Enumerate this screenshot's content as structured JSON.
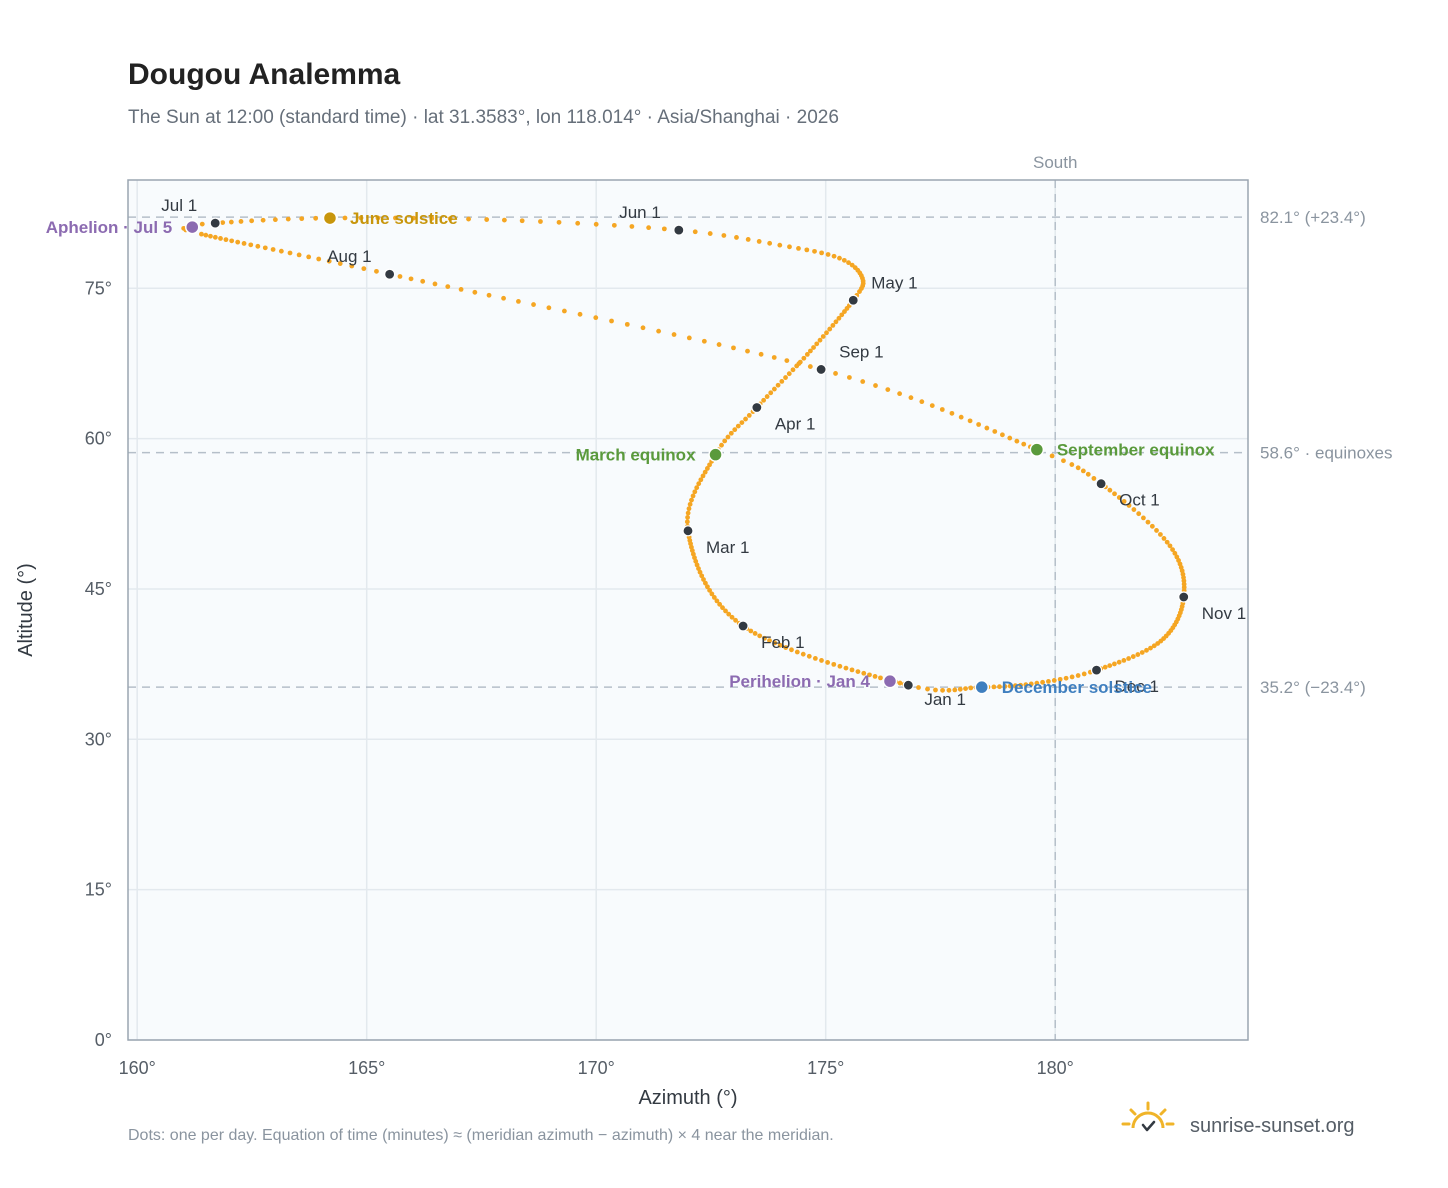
{
  "title": "Dougou Analemma",
  "subtitle": "The Sun at 12:00 (standard time) · lat 31.3583°, lon 118.014° · Asia/Shanghai · 2026",
  "footnote": "Dots: one per day. Equation of time (minutes) ≈ (meridian azimuth − azimuth) × 4 near the meridian.",
  "brand": "sunrise-sunset.org",
  "colors": {
    "path": "#f5a623",
    "month_marker": "#333a42",
    "june_solstice": "#c8960c",
    "december_solstice": "#3f7fbf",
    "equinox": "#5a9a3c",
    "apsis": "#8c6bb1",
    "reference_line": "#b5bfc9",
    "plot_background": "#f8fbfd",
    "frame": "#9aa5b1",
    "brand_icon": "#f0b429"
  },
  "chart_data": {
    "type": "scatter",
    "xlabel": "Azimuth (°)",
    "ylabel": "Altitude (°)",
    "xlim": [
      159.8,
      184.2
    ],
    "ylim": [
      0,
      85.8
    ],
    "x_ticks": [
      160,
      165,
      170,
      175,
      180
    ],
    "x_tick_labels": [
      "160°",
      "165°",
      "170°",
      "175°",
      "180°"
    ],
    "y_ticks": [
      0,
      15,
      30,
      45,
      60,
      75
    ],
    "y_tick_labels": [
      "0°",
      "15°",
      "30°",
      "45°",
      "60°",
      "75°"
    ],
    "grid": true,
    "meridian": {
      "azimuth": 180,
      "label": "South"
    },
    "reference_lines": [
      {
        "altitude": 82.1,
        "label": "82.1° (+23.4°)"
      },
      {
        "altitude": 58.6,
        "label": "58.6° · equinoxes"
      },
      {
        "altitude": 35.2,
        "label": "35.2° (−23.4°)"
      }
    ],
    "path_anchors": [
      {
        "day": 1,
        "az": 176.8,
        "alt": 35.4
      },
      {
        "day": 32,
        "az": 173.2,
        "alt": 41.3
      },
      {
        "day": 60,
        "az": 172.0,
        "alt": 50.8
      },
      {
        "day": 79,
        "az": 172.6,
        "alt": 58.4
      },
      {
        "day": 91,
        "az": 173.5,
        "alt": 63.1
      },
      {
        "day": 105,
        "az": 174.6,
        "alt": 68.4
      },
      {
        "day": 121,
        "az": 175.6,
        "alt": 73.8
      },
      {
        "day": 128,
        "az": 175.8,
        "alt": 76.0
      },
      {
        "day": 136,
        "az": 175.3,
        "alt": 78.0
      },
      {
        "day": 144,
        "az": 174.0,
        "alt": 79.3
      },
      {
        "day": 152,
        "az": 171.8,
        "alt": 80.8
      },
      {
        "day": 162,
        "az": 168.0,
        "alt": 81.8
      },
      {
        "day": 172,
        "az": 164.2,
        "alt": 82.0
      },
      {
        "day": 182,
        "az": 161.7,
        "alt": 81.5
      },
      {
        "day": 186,
        "az": 161.2,
        "alt": 81.1
      },
      {
        "day": 190,
        "az": 161.4,
        "alt": 80.4
      },
      {
        "day": 213,
        "az": 165.5,
        "alt": 76.4
      },
      {
        "day": 244,
        "az": 174.9,
        "alt": 66.9
      },
      {
        "day": 266,
        "az": 179.6,
        "alt": 58.9
      },
      {
        "day": 274,
        "az": 181.0,
        "alt": 55.5
      },
      {
        "day": 290,
        "az": 182.5,
        "alt": 49.3
      },
      {
        "day": 305,
        "az": 182.8,
        "alt": 44.2
      },
      {
        "day": 320,
        "az": 182.3,
        "alt": 39.8
      },
      {
        "day": 335,
        "az": 180.9,
        "alt": 36.9
      },
      {
        "day": 345,
        "az": 179.6,
        "alt": 35.6
      },
      {
        "day": 355,
        "az": 178.4,
        "alt": 35.2
      },
      {
        "day": 366,
        "az": 176.8,
        "alt": 35.4
      }
    ],
    "month_markers": [
      {
        "label": "Jan 1",
        "az": 176.8,
        "alt": 35.4,
        "anchor": "below"
      },
      {
        "label": "Feb 1",
        "az": 173.2,
        "alt": 41.3,
        "anchor": "below-right"
      },
      {
        "label": "Mar 1",
        "az": 172.0,
        "alt": 50.8,
        "anchor": "below-right"
      },
      {
        "label": "Apr 1",
        "az": 173.5,
        "alt": 63.1,
        "anchor": "below-right"
      },
      {
        "label": "May 1",
        "az": 175.6,
        "alt": 73.8,
        "anchor": "above-right"
      },
      {
        "label": "Jun 1",
        "az": 171.8,
        "alt": 80.8,
        "anchor": "above-left"
      },
      {
        "label": "Jul 1",
        "az": 161.7,
        "alt": 81.5,
        "anchor": "above-left"
      },
      {
        "label": "Aug 1",
        "az": 165.5,
        "alt": 76.4,
        "anchor": "above-left"
      },
      {
        "label": "Sep 1",
        "az": 174.9,
        "alt": 66.9,
        "anchor": "above-right"
      },
      {
        "label": "Oct 1",
        "az": 181.0,
        "alt": 55.5,
        "anchor": "below-right"
      },
      {
        "label": "Nov 1",
        "az": 182.8,
        "alt": 44.2,
        "anchor": "below-right"
      },
      {
        "label": "Dec 1",
        "az": 180.9,
        "alt": 36.9,
        "anchor": "below-right"
      }
    ],
    "events": [
      {
        "label": "June solstice",
        "az": 164.2,
        "alt": 82.0,
        "color_key": "june_solstice",
        "side": "right"
      },
      {
        "label": "December solstice",
        "az": 178.4,
        "alt": 35.2,
        "color_key": "december_solstice",
        "side": "right"
      },
      {
        "label": "March equinox",
        "az": 172.6,
        "alt": 58.4,
        "color_key": "equinox",
        "side": "left"
      },
      {
        "label": "September equinox",
        "az": 179.6,
        "alt": 58.9,
        "color_key": "equinox",
        "side": "right"
      },
      {
        "label": "Aphelion · Jul 5",
        "az": 161.2,
        "alt": 81.1,
        "color_key": "apsis",
        "side": "left"
      },
      {
        "label": "Perihelion · Jan 4",
        "az": 176.4,
        "alt": 35.8,
        "color_key": "apsis",
        "side": "left"
      }
    ]
  }
}
